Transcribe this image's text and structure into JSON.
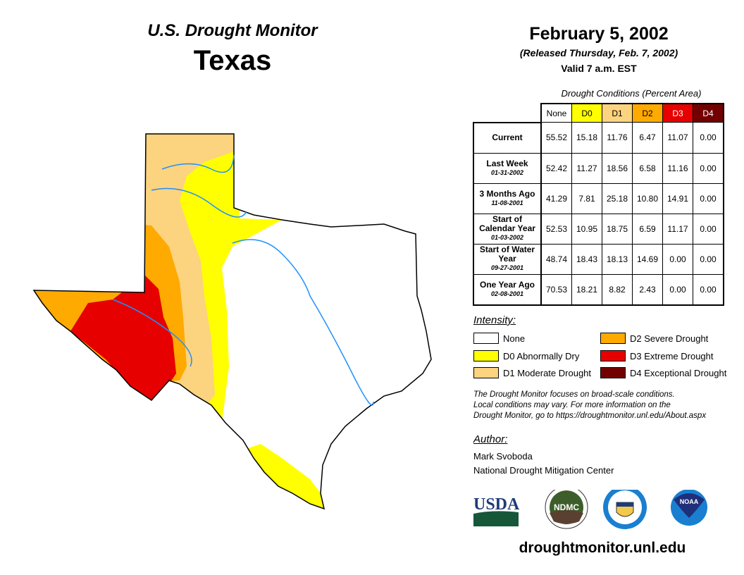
{
  "title": "U.S. Drought Monitor",
  "state": "Texas",
  "date": "February 5, 2002",
  "released": "(Released Thursday, Feb. 7, 2002)",
  "valid": "Valid 7 a.m. EST",
  "table": {
    "caption": "Drought Conditions (Percent Area)",
    "columns": [
      "None",
      "D0",
      "D1",
      "D2",
      "D3",
      "D4"
    ],
    "rows": [
      {
        "label": "Current",
        "sub": "",
        "values": [
          "55.52",
          "15.18",
          "11.76",
          "6.47",
          "11.07",
          "0.00"
        ]
      },
      {
        "label": "Last Week",
        "sub": "01-31-2002",
        "values": [
          "52.42",
          "11.27",
          "18.56",
          "6.58",
          "11.16",
          "0.00"
        ]
      },
      {
        "label": "3 Months Ago",
        "sub": "11-08-2001",
        "values": [
          "41.29",
          "7.81",
          "25.18",
          "10.80",
          "14.91",
          "0.00"
        ]
      },
      {
        "label": "Start of Calendar Year",
        "sub": "01-03-2002",
        "values": [
          "52.53",
          "10.95",
          "18.75",
          "6.59",
          "11.17",
          "0.00"
        ]
      },
      {
        "label": "Start of Water Year",
        "sub": "09-27-2001",
        "values": [
          "48.74",
          "18.43",
          "18.13",
          "14.69",
          "0.00",
          "0.00"
        ]
      },
      {
        "label": "One Year Ago",
        "sub": "02-08-2001",
        "values": [
          "70.53",
          "18.21",
          "8.82",
          "2.43",
          "0.00",
          "0.00"
        ]
      }
    ]
  },
  "legend": {
    "title": "Intensity:",
    "items": [
      {
        "label": "None",
        "color": "#ffffff"
      },
      {
        "label": "D0 Abnormally Dry",
        "color": "#ffff00"
      },
      {
        "label": "D1 Moderate Drought",
        "color": "#fcd37f"
      },
      {
        "label": "D2 Severe Drought",
        "color": "#ffaa00"
      },
      {
        "label": "D3 Extreme Drought",
        "color": "#e60000"
      },
      {
        "label": "D4 Exceptional Drought",
        "color": "#730000"
      }
    ]
  },
  "note": [
    "The Drought Monitor focuses on broad-scale conditions.",
    "Local conditions may vary. For more information on the",
    "Drought Monitor, go to https://droughtmonitor.unl.edu/About.aspx"
  ],
  "author": {
    "heading": "Author:",
    "name": "Mark Svoboda",
    "org": "National Drought Mitigation Center"
  },
  "logos": [
    "USDA",
    "NDMC",
    "Department of Commerce",
    "NOAA"
  ],
  "url": "droughtmonitor.unl.edu"
}
